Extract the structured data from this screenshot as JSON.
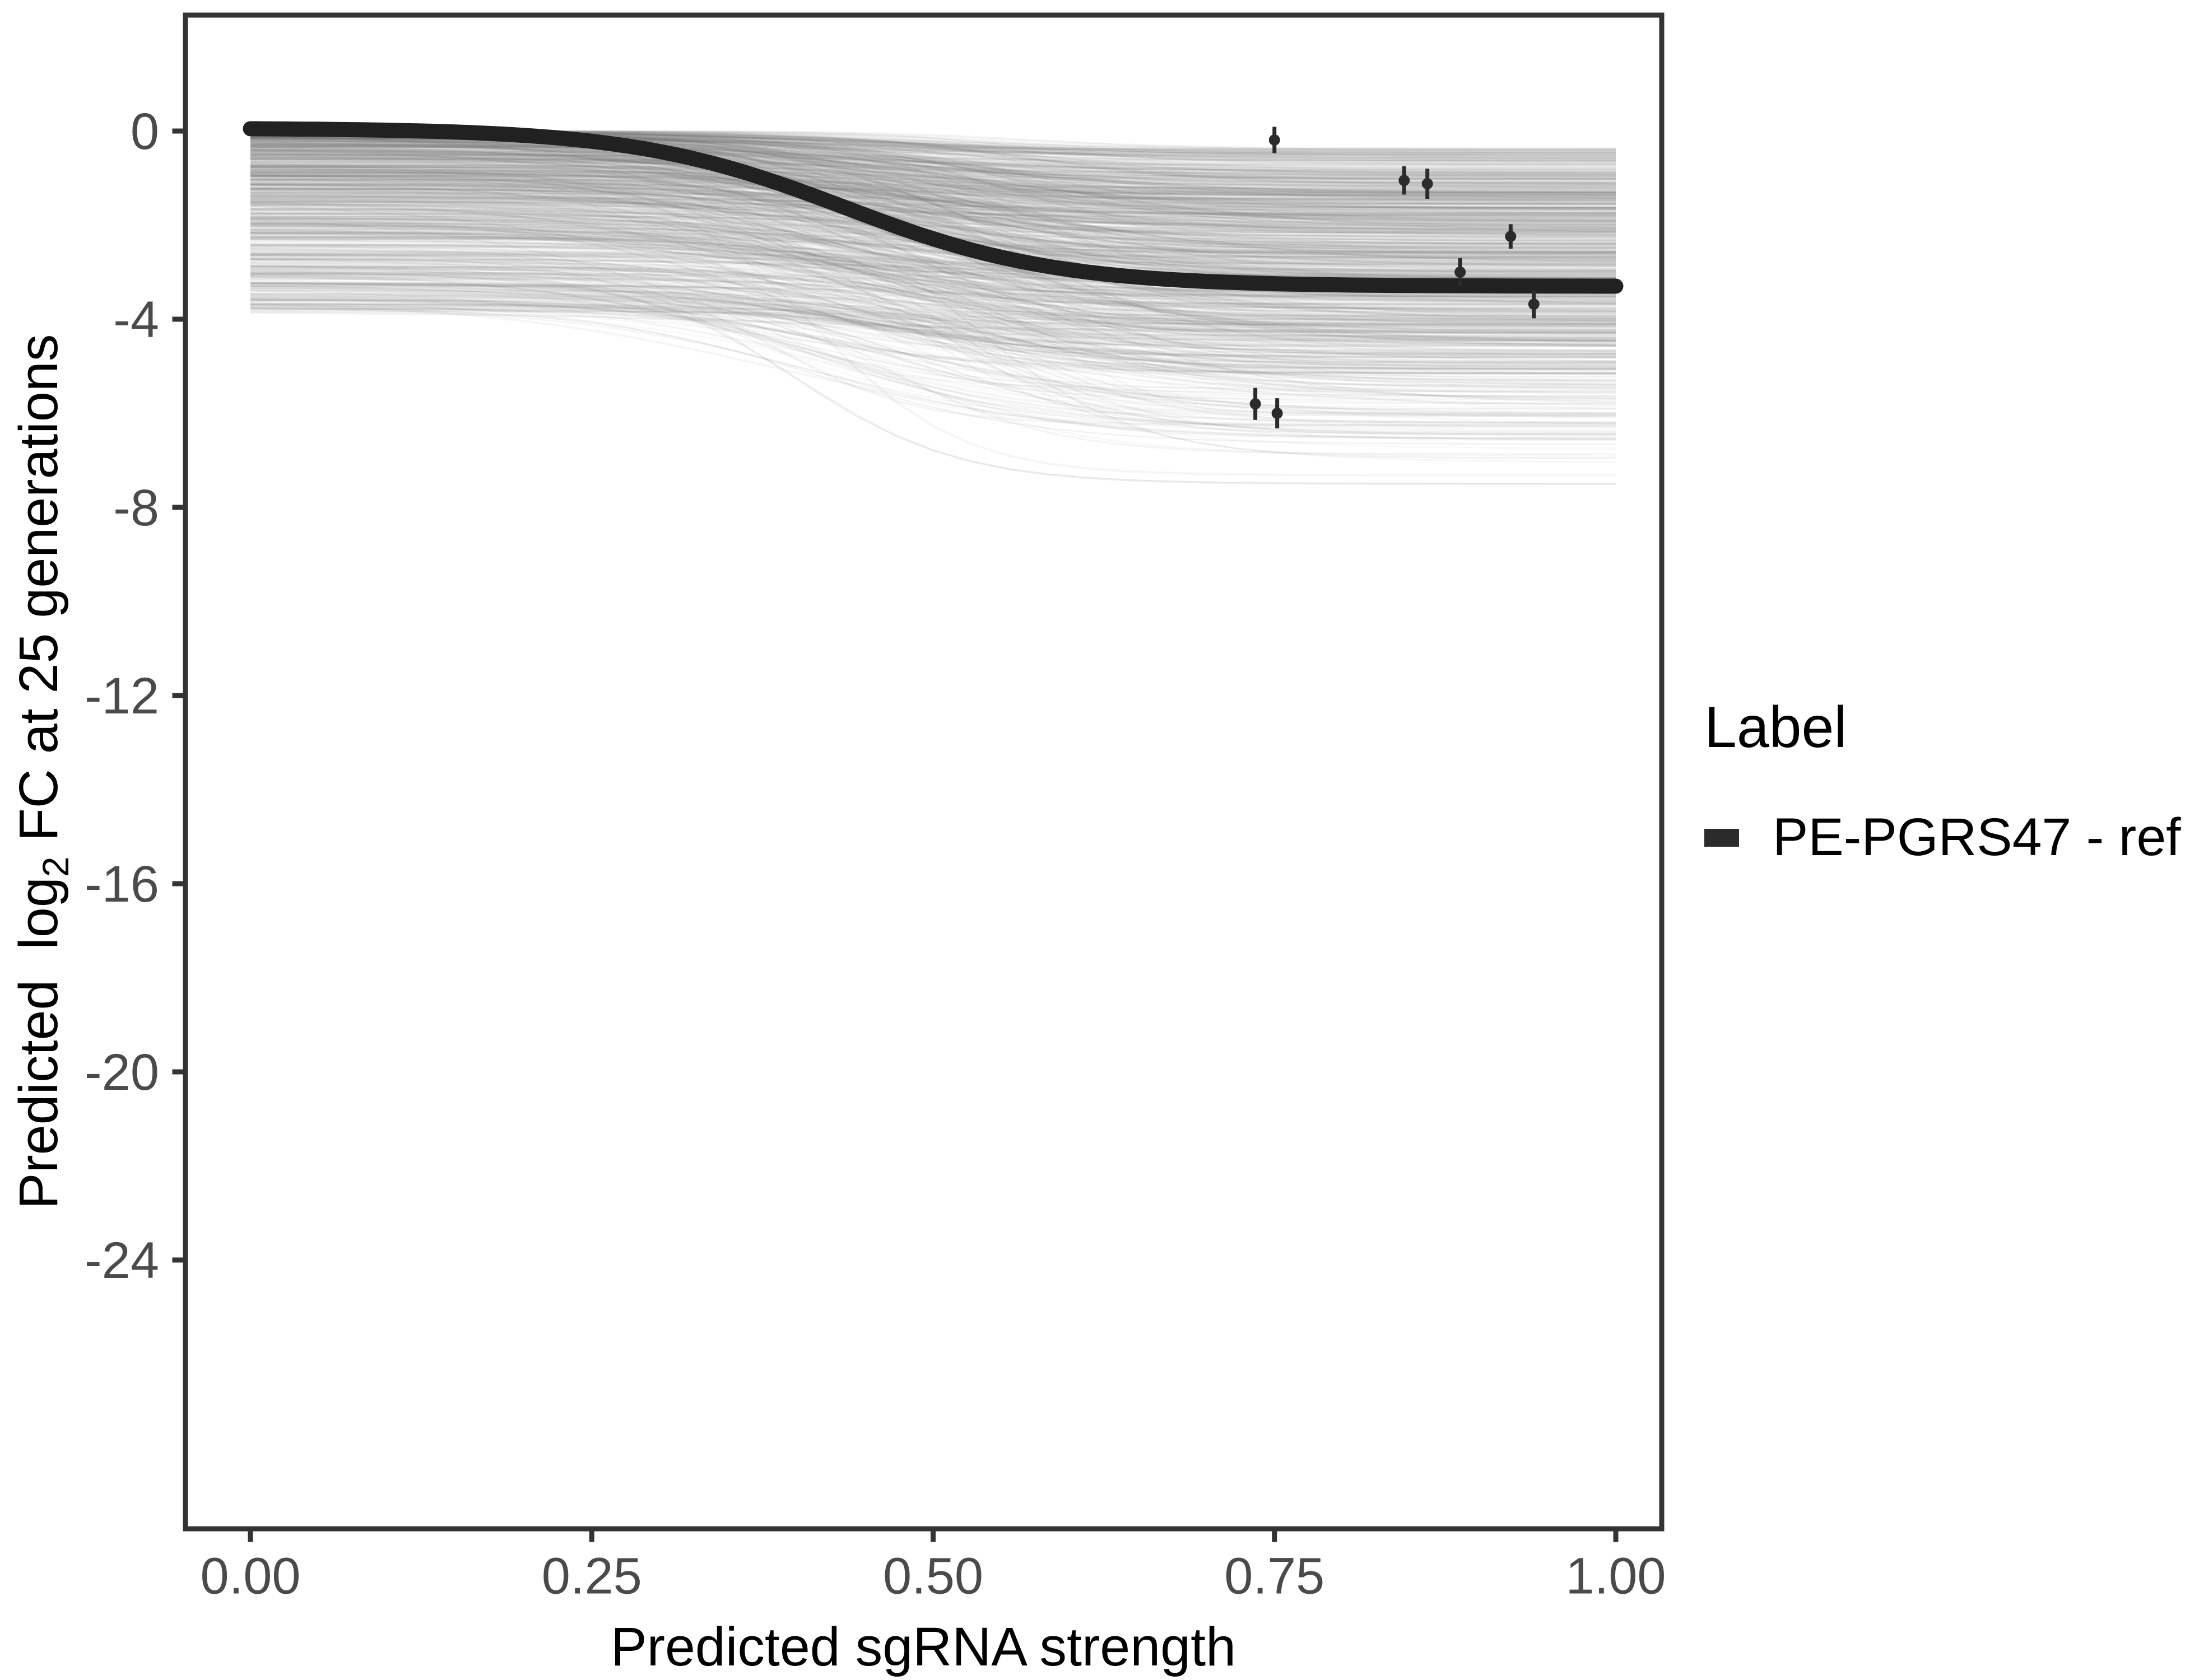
{
  "figure": {
    "background": "#ffffff",
    "axis_color": "#333333",
    "tick_label_color": "#4a4a4a",
    "title_color": "#000000"
  },
  "chart_data": {
    "type": "line",
    "title": "",
    "xlabel": "Predicted sgRNA strength",
    "ylabel": "Predicted  log2 FC at 25 generations",
    "ylabel_parts": {
      "prefix": "Predicted  log",
      "subscript": "2",
      "suffix": " FC at 25 generations"
    },
    "grid": false,
    "xlim": [
      0,
      1
    ],
    "axis_ranges": {
      "x_panel": [
        -0.048,
        1.034
      ],
      "y_panel": [
        -29.7,
        2.46
      ]
    },
    "x_ticks": [
      {
        "value": 0.0,
        "label": "0.00"
      },
      {
        "value": 0.25,
        "label": "0.25"
      },
      {
        "value": 0.5,
        "label": "0.50"
      },
      {
        "value": 0.75,
        "label": "0.75"
      },
      {
        "value": 1.0,
        "label": "1.00"
      }
    ],
    "y_ticks": [
      {
        "value": 0,
        "label": "0"
      },
      {
        "value": -4,
        "label": "-4"
      },
      {
        "value": -8,
        "label": "-8"
      },
      {
        "value": -12,
        "label": "-12"
      },
      {
        "value": -16,
        "label": "-16"
      },
      {
        "value": -20,
        "label": "-20"
      },
      {
        "value": -24,
        "label": "-24"
      }
    ],
    "legend": {
      "title": "Label",
      "position": "right",
      "items": [
        {
          "label": "PE-PGRS47 - ref",
          "swatch_color": "#2b2b2b"
        }
      ]
    },
    "main_curve": {
      "name": "PE-PGRS47 - ref",
      "color": "#212121",
      "stroke_width": 27,
      "model": "logistic",
      "params": {
        "left_asymptote": 0.06,
        "right_asymptote": -3.3,
        "midpoint": 0.435,
        "steepness": 13
      }
    },
    "points": [
      {
        "x": 0.75,
        "y": -0.19,
        "err": 0.28
      },
      {
        "x": 0.845,
        "y": -1.05,
        "err": 0.3
      },
      {
        "x": 0.862,
        "y": -1.12,
        "err": 0.32
      },
      {
        "x": 0.923,
        "y": -2.24,
        "err": 0.26
      },
      {
        "x": 0.886,
        "y": -3.0,
        "err": 0.3
      },
      {
        "x": 0.94,
        "y": -3.68,
        "err": 0.3
      },
      {
        "x": 0.736,
        "y": -5.8,
        "err": 0.34
      },
      {
        "x": 0.752,
        "y": -6.0,
        "err": 0.32
      }
    ],
    "ensemble": {
      "description": "posterior draw logistic curves",
      "count": 900,
      "seed": 7,
      "color": "#787878",
      "line_width_range": [
        2,
        4.6
      ],
      "opacity_range": [
        0.028,
        0.113
      ],
      "left_value_range": [
        -3.85,
        0
      ],
      "right_value_range": [
        -7.5,
        -0.35
      ],
      "midpoint_range": [
        0.36,
        0.58
      ],
      "steepness_range": [
        8,
        19
      ],
      "deep_diver_probability": 0.027
    }
  }
}
